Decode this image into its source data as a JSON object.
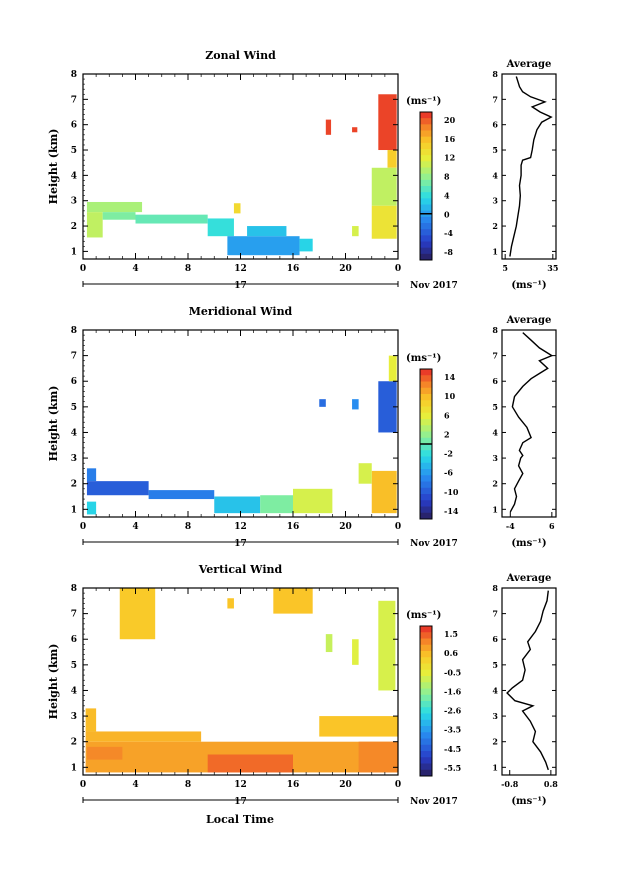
{
  "date_label": "Nov 2017",
  "day_label": "17",
  "xlabel_bottom": "Local Time",
  "chart_data": [
    {
      "type": "heatmap",
      "title": "Zonal Wind",
      "xlabel": "",
      "ylabel": "Height (km)",
      "xticks": [
        "0",
        "4",
        "8",
        "12",
        "16",
        "20",
        "0"
      ],
      "yticks": [
        "1",
        "2",
        "3",
        "4",
        "5",
        "6",
        "7",
        "8"
      ],
      "xlim": [
        0,
        24
      ],
      "ylim": [
        0.7,
        8
      ],
      "units": "(ms⁻¹)",
      "colorbar": {
        "ticks": [
          "20",
          "16",
          "12",
          "8",
          "4",
          "0",
          "-4",
          "-8"
        ],
        "min": -10,
        "max": 22,
        "zero_line": 0
      },
      "cells": [
        {
          "x0": 0.3,
          "x1": 4.5,
          "y0": 2.55,
          "y1": 2.95,
          "v": 9
        },
        {
          "x0": 0.3,
          "x1": 1.5,
          "y0": 1.55,
          "y1": 2.55,
          "v": 10
        },
        {
          "x0": 1.5,
          "x1": 4.0,
          "y0": 2.25,
          "y1": 2.55,
          "v": 7
        },
        {
          "x0": 4.0,
          "x1": 9.5,
          "y0": 2.1,
          "y1": 2.45,
          "v": 6
        },
        {
          "x0": 9.5,
          "x1": 11.5,
          "y0": 1.6,
          "y1": 2.3,
          "v": 4
        },
        {
          "x0": 11.0,
          "x1": 16.5,
          "y0": 0.85,
          "y1": 1.6,
          "v": 0
        },
        {
          "x0": 12.5,
          "x1": 15.5,
          "y0": 1.6,
          "y1": 2.0,
          "v": 2
        },
        {
          "x0": 16.5,
          "x1": 17.5,
          "y0": 1.0,
          "y1": 1.5,
          "v": 3
        },
        {
          "x0": 11.5,
          "x1": 12.0,
          "y0": 2.5,
          "y1": 2.9,
          "v": 14
        },
        {
          "x0": 18.5,
          "x1": 18.9,
          "y0": 5.6,
          "y1": 6.2,
          "v": 21
        },
        {
          "x0": 20.5,
          "x1": 20.9,
          "y0": 5.7,
          "y1": 5.9,
          "v": 21
        },
        {
          "x0": 22.5,
          "x1": 23.9,
          "y0": 5.0,
          "y1": 7.2,
          "v": 21
        },
        {
          "x0": 23.2,
          "x1": 23.9,
          "y0": 4.3,
          "y1": 5.0,
          "v": 15
        },
        {
          "x0": 22.0,
          "x1": 23.9,
          "y0": 2.8,
          "y1": 4.3,
          "v": 10
        },
        {
          "x0": 22.0,
          "x1": 23.9,
          "y0": 1.5,
          "y1": 2.8,
          "v": 13
        },
        {
          "x0": 20.5,
          "x1": 21.0,
          "y0": 1.6,
          "y1": 2.0,
          "v": 11
        }
      ]
    },
    {
      "type": "heatmap",
      "title": "Meridional Wind",
      "xlabel": "",
      "ylabel": "Height (km)",
      "xticks": [
        "0",
        "4",
        "8",
        "12",
        "16",
        "20",
        "0"
      ],
      "yticks": [
        "1",
        "2",
        "3",
        "4",
        "5",
        "6",
        "7",
        "8"
      ],
      "xlim": [
        0,
        24
      ],
      "ylim": [
        0.7,
        8
      ],
      "units": "(ms⁻¹)",
      "colorbar": {
        "ticks": [
          "14",
          "10",
          "6",
          "2",
          "-2",
          "-6",
          "-10",
          "-14"
        ],
        "min": -16,
        "max": 16,
        "zero_line": 0
      },
      "cells": [
        {
          "x0": 0.3,
          "x1": 1.0,
          "y0": 2.1,
          "y1": 2.6,
          "v": -8
        },
        {
          "x0": 0.3,
          "x1": 5.0,
          "y0": 1.55,
          "y1": 2.1,
          "v": -10
        },
        {
          "x0": 5.0,
          "x1": 10.0,
          "y0": 1.4,
          "y1": 1.75,
          "v": -8
        },
        {
          "x0": 0.3,
          "x1": 1.0,
          "y0": 0.8,
          "y1": 1.3,
          "v": -3
        },
        {
          "x0": 10.0,
          "x1": 13.5,
          "y0": 0.85,
          "y1": 1.5,
          "v": -4
        },
        {
          "x0": 13.5,
          "x1": 16.0,
          "y0": 0.85,
          "y1": 1.55,
          "v": 1
        },
        {
          "x0": 16.0,
          "x1": 19.0,
          "y0": 0.85,
          "y1": 1.8,
          "v": 5
        },
        {
          "x0": 18.0,
          "x1": 18.5,
          "y0": 5.0,
          "y1": 5.3,
          "v": -9
        },
        {
          "x0": 20.5,
          "x1": 21.0,
          "y0": 4.9,
          "y1": 5.3,
          "v": -7
        },
        {
          "x0": 22.5,
          "x1": 23.9,
          "y0": 4.0,
          "y1": 6.0,
          "v": -10
        },
        {
          "x0": 23.3,
          "x1": 23.9,
          "y0": 6.0,
          "y1": 7.0,
          "v": 6
        },
        {
          "x0": 22.0,
          "x1": 23.9,
          "y0": 0.85,
          "y1": 2.5,
          "v": 10
        },
        {
          "x0": 21.0,
          "x1": 22.0,
          "y0": 2.0,
          "y1": 2.8,
          "v": 5
        }
      ]
    },
    {
      "type": "heatmap",
      "title": "Vertical Wind",
      "xlabel": "Local Time",
      "ylabel": "Height (km)",
      "xticks": [
        "0",
        "4",
        "8",
        "12",
        "16",
        "20",
        "0"
      ],
      "yticks": [
        "1",
        "2",
        "3",
        "4",
        "5",
        "6",
        "7",
        "8"
      ],
      "xlim": [
        0,
        24
      ],
      "ylim": [
        0.7,
        8
      ],
      "units": "(ms⁻¹)",
      "colorbar": {
        "ticks": [
          "1.5",
          "0.6",
          "-0.5",
          "-1.6",
          "-2.6",
          "-3.5",
          "-4.5",
          "-5.5"
        ],
        "min": -6,
        "max": 2.2
      },
      "cells": [
        {
          "x0": 0.2,
          "x1": 24.0,
          "y0": 0.8,
          "y1": 2.0,
          "v": 1.0
        },
        {
          "x0": 0.2,
          "x1": 9.0,
          "y0": 2.0,
          "y1": 2.4,
          "v": 0.8
        },
        {
          "x0": 0.2,
          "x1": 1.0,
          "y0": 2.4,
          "y1": 3.3,
          "v": 0.7
        },
        {
          "x0": 0.3,
          "x1": 3.0,
          "y0": 1.3,
          "y1": 1.8,
          "v": 1.3
        },
        {
          "x0": 9.5,
          "x1": 16.0,
          "y0": 0.8,
          "y1": 1.5,
          "v": 1.6
        },
        {
          "x0": 21.0,
          "x1": 24.0,
          "y0": 0.8,
          "y1": 2.0,
          "v": 1.3
        },
        {
          "x0": 2.8,
          "x1": 5.5,
          "y0": 6.0,
          "y1": 8.0,
          "v": 0.5
        },
        {
          "x0": 14.5,
          "x1": 17.5,
          "y0": 7.0,
          "y1": 8.0,
          "v": 0.6
        },
        {
          "x0": 11.0,
          "x1": 11.5,
          "y0": 7.2,
          "y1": 7.6,
          "v": 0.6
        },
        {
          "x0": 18.5,
          "x1": 19.0,
          "y0": 5.5,
          "y1": 6.2,
          "v": -0.8
        },
        {
          "x0": 22.5,
          "x1": 23.8,
          "y0": 4.0,
          "y1": 7.5,
          "v": -0.6
        },
        {
          "x0": 20.5,
          "x1": 21.0,
          "y0": 5.0,
          "y1": 6.0,
          "v": -0.5
        },
        {
          "x0": 18.0,
          "x1": 24.0,
          "y0": 2.2,
          "y1": 3.0,
          "v": 0.6
        }
      ]
    }
  ],
  "averages": [
    {
      "title": "Average",
      "type": "line",
      "xlabel": "(ms⁻¹)",
      "xticks": [
        "5",
        "35"
      ],
      "xtick_values": [
        5,
        35
      ],
      "xlim": [
        3,
        37
      ],
      "ylim": [
        0.7,
        8
      ],
      "points": [
        [
          8,
          0.8
        ],
        [
          9,
          1.2
        ],
        [
          10.5,
          1.6
        ],
        [
          12,
          2.0
        ],
        [
          13,
          2.4
        ],
        [
          14,
          2.8
        ],
        [
          14.5,
          3.2
        ],
        [
          14,
          3.6
        ],
        [
          15,
          4.0
        ],
        [
          15,
          4.4
        ],
        [
          16,
          4.6
        ],
        [
          21,
          4.7
        ],
        [
          22,
          5.0
        ],
        [
          23,
          5.4
        ],
        [
          25,
          5.8
        ],
        [
          28,
          6.1
        ],
        [
          34,
          6.3
        ],
        [
          27,
          6.5
        ],
        [
          22,
          6.7
        ],
        [
          30,
          6.9
        ],
        [
          21,
          7.1
        ],
        [
          16,
          7.3
        ],
        [
          14,
          7.5
        ],
        [
          13,
          7.7
        ],
        [
          12,
          7.9
        ]
      ]
    },
    {
      "title": "Average",
      "type": "line",
      "xlabel": "(ms⁻¹)",
      "xticks": [
        "-4",
        "6"
      ],
      "xtick_values": [
        -4,
        6
      ],
      "xlim": [
        -6,
        7
      ],
      "ylim": [
        0.7,
        8
      ],
      "points": [
        [
          -4,
          0.9
        ],
        [
          -3,
          1.2
        ],
        [
          -2.5,
          1.5
        ],
        [
          -3,
          1.8
        ],
        [
          -2,
          2.1
        ],
        [
          -1,
          2.4
        ],
        [
          -2,
          2.7
        ],
        [
          -1.5,
          3.0
        ],
        [
          -1,
          3.1
        ],
        [
          -1.8,
          3.3
        ],
        [
          -1,
          3.6
        ],
        [
          1,
          3.8
        ],
        [
          0,
          4.2
        ],
        [
          -2,
          4.6
        ],
        [
          -3.5,
          5.0
        ],
        [
          -3,
          5.4
        ],
        [
          -1,
          5.8
        ],
        [
          1,
          6.1
        ],
        [
          3,
          6.3
        ],
        [
          5,
          6.5
        ],
        [
          3,
          6.8
        ],
        [
          6,
          7.0
        ],
        [
          3,
          7.3
        ],
        [
          1,
          7.6
        ],
        [
          -1,
          7.9
        ]
      ]
    },
    {
      "title": "Average",
      "type": "line",
      "xlabel": "(ms⁻¹)",
      "xticks": [
        "-0.8",
        "0.8"
      ],
      "xtick_values": [
        -0.8,
        0.8
      ],
      "xlim": [
        -1.1,
        1.0
      ],
      "ylim": [
        0.7,
        8
      ],
      "points": [
        [
          0.7,
          0.9
        ],
        [
          0.6,
          1.2
        ],
        [
          0.4,
          1.6
        ],
        [
          0.1,
          2.0
        ],
        [
          0.2,
          2.4
        ],
        [
          0.0,
          2.8
        ],
        [
          -0.3,
          3.2
        ],
        [
          0.1,
          3.4
        ],
        [
          -0.6,
          3.6
        ],
        [
          -0.9,
          3.9
        ],
        [
          -0.7,
          4.1
        ],
        [
          -0.3,
          4.4
        ],
        [
          -0.2,
          4.8
        ],
        [
          -0.3,
          5.2
        ],
        [
          0.0,
          5.6
        ],
        [
          -0.1,
          5.9
        ],
        [
          0.2,
          6.3
        ],
        [
          0.4,
          6.7
        ],
        [
          0.5,
          7.1
        ],
        [
          0.65,
          7.5
        ],
        [
          0.7,
          7.9
        ]
      ]
    }
  ]
}
